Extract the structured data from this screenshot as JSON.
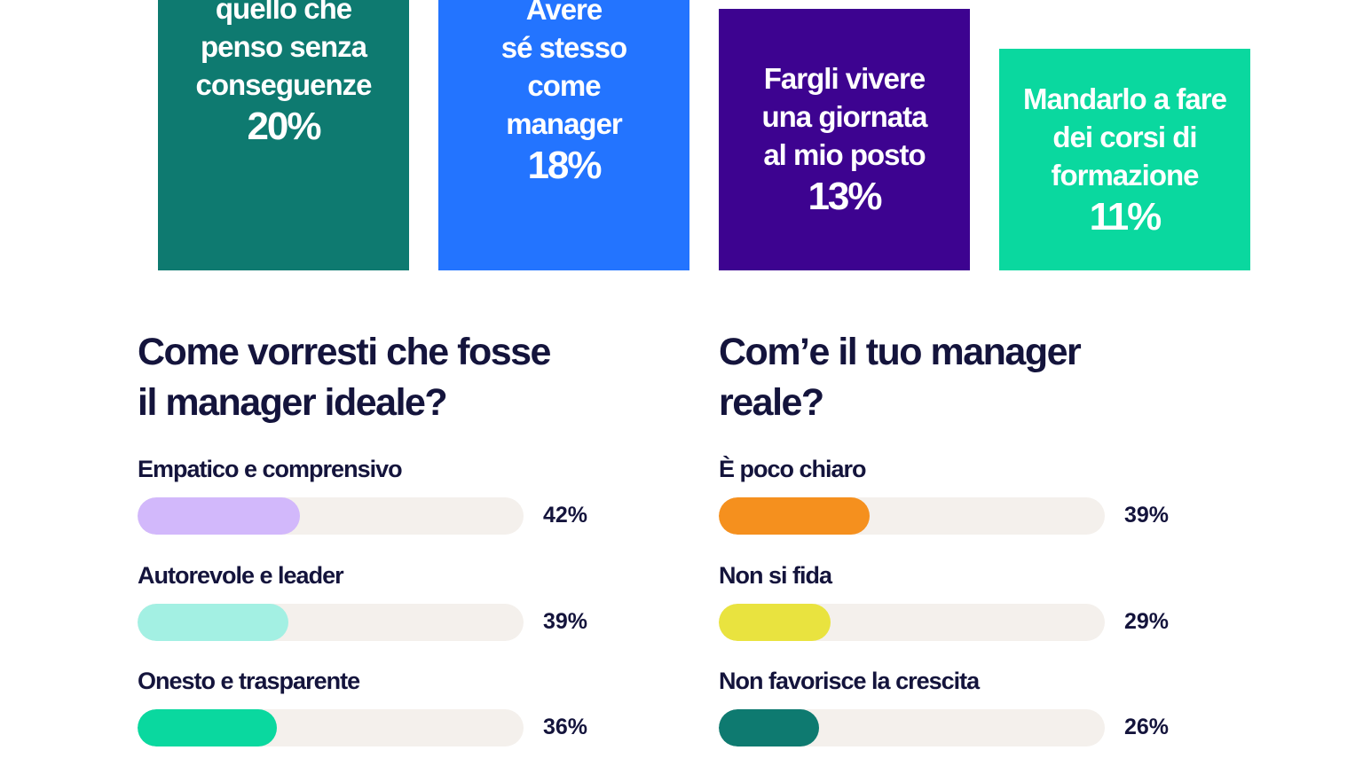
{
  "chart_data": [
    {
      "type": "bar",
      "categories": [
        "quello che\npenso senza\nconseguenze",
        "Avere\nsé stesso\ncome\nmanager",
        "Fargli vivere\nuna giornata\nal mio posto",
        "Mandarlo a fare\ndei corsi di\nformazione"
      ],
      "values": [
        20,
        18,
        13,
        11
      ],
      "value_labels": [
        "20%",
        "18%",
        "13%",
        "11%"
      ],
      "colors": [
        "#0e7a70",
        "#2374ff",
        "#3d0390",
        "#0ad89f"
      ]
    },
    {
      "type": "hbar",
      "title": "Come vorresti che fosse\nil manager ideale?",
      "categories": [
        "Empatico e comprensivo",
        "Autorevole e leader",
        "Onesto e trasparente"
      ],
      "values": [
        42,
        39,
        36
      ],
      "value_labels": [
        "42%",
        "39%",
        "36%"
      ],
      "colors": [
        "#d2b8fb",
        "#a3f0e3",
        "#0ad89f"
      ],
      "xlim": [
        0,
        100
      ]
    },
    {
      "type": "hbar",
      "title": "Com’e il tuo manager\nreale?",
      "categories": [
        "È poco chiaro",
        "Non si fida",
        "Non favorisce la crescita"
      ],
      "values": [
        39,
        29,
        26
      ],
      "value_labels": [
        "39%",
        "29%",
        "26%"
      ],
      "colors": [
        "#f5901e",
        "#e9e33f",
        "#0e7a70"
      ],
      "xlim": [
        0,
        100
      ]
    }
  ]
}
